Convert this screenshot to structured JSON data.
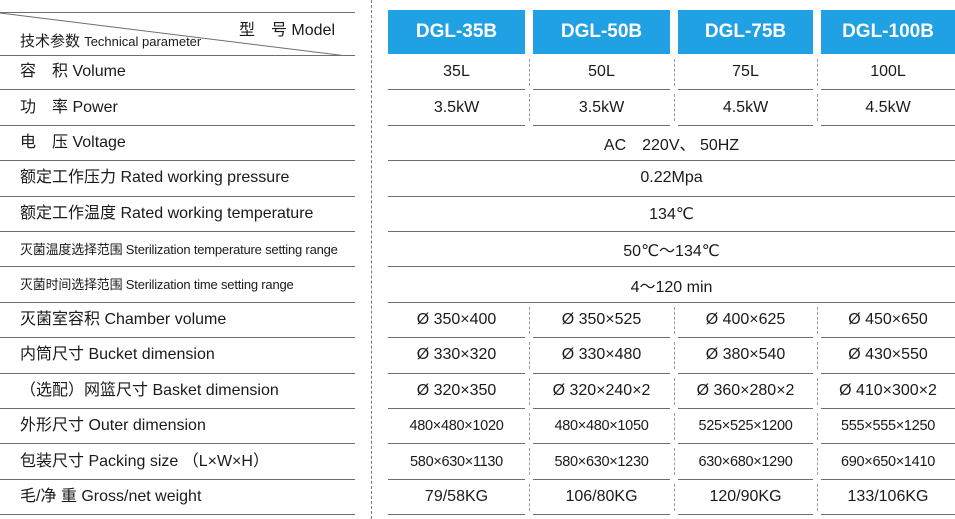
{
  "header": {
    "model_label": "型　号 Model",
    "tech_zh": "技术参数",
    "tech_en": "Technical parameter"
  },
  "models": [
    "DGL-35B",
    "DGL-50B",
    "DGL-75B",
    "DGL-100B"
  ],
  "rows": [
    {
      "label": "容　积 Volume",
      "values": [
        "35L",
        "50L",
        "75L",
        "100L"
      ]
    },
    {
      "label": "功　率 Power",
      "values": [
        "3.5kW",
        "3.5kW",
        "4.5kW",
        "4.5kW"
      ]
    },
    {
      "label": "电　压 Voltage",
      "merged": "AC　220V、 50HZ"
    },
    {
      "label": "额定工作压力 Rated working pressure",
      "merged": "0.22Mpa"
    },
    {
      "label": "额定工作温度 Rated working temperature",
      "merged": "134℃"
    },
    {
      "label": "灭菌温度选择范围 Sterilization  temperature setting range",
      "merged": "50℃～134℃",
      "small": true
    },
    {
      "label": "灭菌时间选择范围 Sterilization time setting range",
      "merged": "4～120 min",
      "small": true
    },
    {
      "label": "灭菌室容积  Chamber volume",
      "values": [
        "Ø 350×400",
        "Ø 350×525",
        "Ø 400×625",
        "Ø 450×650"
      ]
    },
    {
      "label": "内筒尺寸  Bucket dimension",
      "values": [
        "Ø 330×320",
        "Ø 330×480",
        "Ø 380×540",
        "Ø 430×550"
      ]
    },
    {
      "label": "（选配）网篮尺寸  Basket dimension",
      "values": [
        "Ø 320×350",
        "Ø 320×240×2",
        "Ø 360×280×2",
        "Ø 410×300×2"
      ]
    },
    {
      "label": "外形尺寸  Outer dimension",
      "values": [
        "480×480×1020",
        "480×480×1050",
        "525×525×1200",
        "555×555×1250"
      ],
      "dim": true
    },
    {
      "label": "包装尺寸 Packing size （L×W×H）",
      "values": [
        "580×630×1130",
        "580×630×1230",
        "630×680×1290",
        "690×650×1410"
      ],
      "dim": true
    },
    {
      "label": "毛/净 重 Gross/net weight",
      "values": [
        "79/58KG",
        "106/80KG",
        "120/90KG",
        "133/106KG"
      ]
    }
  ],
  "colors": {
    "header_bg": "#1fa1e3",
    "header_text": "#ffffff",
    "rule": "#6e6e6e"
  }
}
